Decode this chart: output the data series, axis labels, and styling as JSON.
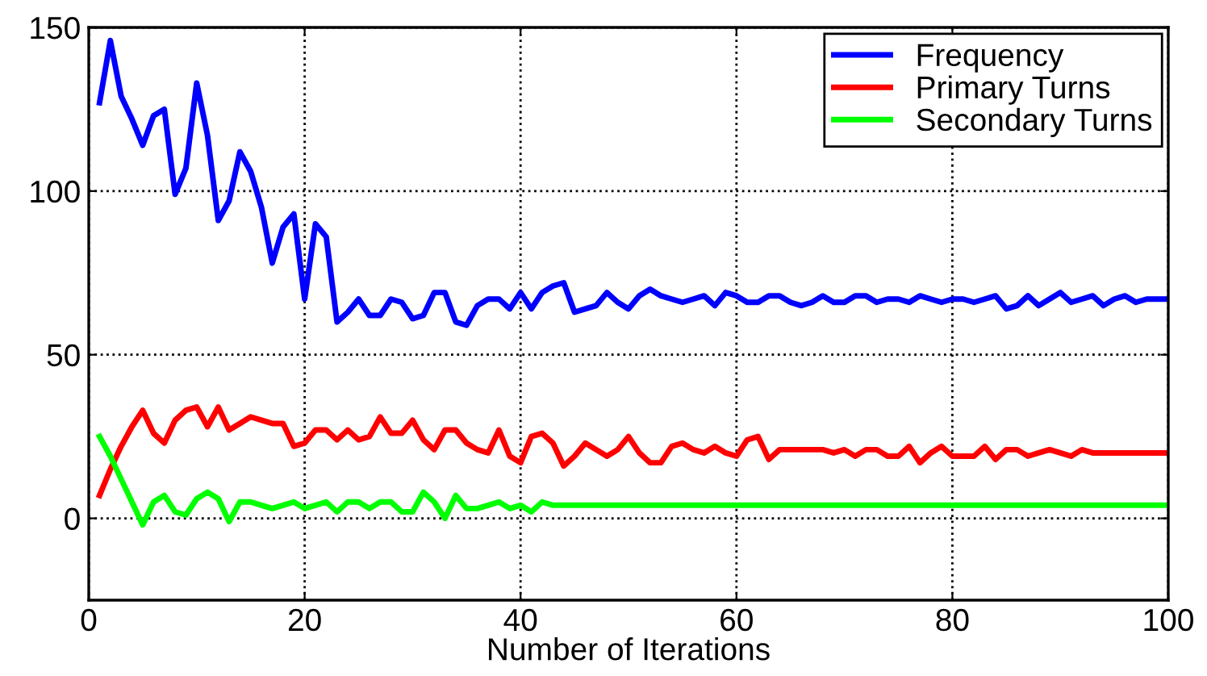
{
  "chart_data": {
    "type": "line",
    "xlabel": "Number of Iterations",
    "xlim": [
      0,
      100
    ],
    "xticks": [
      0,
      20,
      40,
      60,
      80,
      100
    ],
    "ylim": [
      -25,
      150
    ],
    "yticks": [
      0,
      50,
      100,
      150
    ],
    "grid": true,
    "legend": "top right",
    "line_style": "solid",
    "marker": "none",
    "x": [
      1,
      2,
      3,
      4,
      5,
      6,
      7,
      8,
      9,
      10,
      11,
      12,
      13,
      14,
      15,
      16,
      17,
      18,
      19,
      20,
      21,
      22,
      23,
      24,
      25,
      26,
      27,
      28,
      29,
      30,
      31,
      32,
      33,
      34,
      35,
      36,
      37,
      38,
      39,
      40,
      41,
      42,
      43,
      44,
      45,
      46,
      47,
      48,
      49,
      50,
      51,
      52,
      53,
      54,
      55,
      56,
      57,
      58,
      59,
      60,
      61,
      62,
      63,
      64,
      65,
      66,
      67,
      68,
      69,
      70,
      71,
      72,
      73,
      74,
      75,
      76,
      77,
      78,
      79,
      80,
      81,
      82,
      83,
      84,
      85,
      86,
      87,
      88,
      89,
      90,
      91,
      92,
      93,
      94,
      95,
      96,
      97,
      98,
      99,
      100
    ],
    "series": [
      {
        "name": "Frequency",
        "color": "#0000ff",
        "values": [
          127,
          146,
          129,
          122,
          114,
          123,
          125,
          99,
          107,
          133,
          117,
          91,
          97,
          112,
          106,
          95,
          78,
          89,
          93,
          67,
          90,
          86,
          60,
          63,
          67,
          62,
          62,
          67,
          66,
          61,
          62,
          69,
          69,
          60,
          59,
          65,
          67,
          67,
          64,
          69,
          64,
          69,
          71,
          72,
          63,
          64,
          65,
          69,
          66,
          64,
          68,
          70,
          68,
          67,
          66,
          67,
          68,
          65,
          69,
          68,
          66,
          66,
          68,
          68,
          66,
          65,
          66,
          68,
          66,
          66,
          68,
          68,
          66,
          67,
          67,
          66,
          68,
          67,
          66,
          67,
          67,
          66,
          67,
          68,
          64,
          65,
          68,
          65,
          67,
          69,
          66,
          67,
          68,
          65,
          67,
          68,
          66,
          67,
          67,
          67
        ]
      },
      {
        "name": "Primary Turns",
        "color": "#ff0000",
        "values": [
          7,
          15,
          22,
          28,
          33,
          26,
          23,
          30,
          33,
          34,
          28,
          34,
          27,
          29,
          31,
          30,
          29,
          29,
          22,
          23,
          27,
          27,
          24,
          27,
          24,
          25,
          31,
          26,
          26,
          30,
          24,
          21,
          27,
          27,
          23,
          21,
          20,
          27,
          19,
          17,
          25,
          26,
          23,
          16,
          19,
          23,
          21,
          19,
          21,
          25,
          20,
          17,
          17,
          22,
          23,
          21,
          20,
          22,
          20,
          19,
          24,
          25,
          18,
          21,
          21,
          21,
          21,
          21,
          20,
          21,
          19,
          21,
          21,
          19,
          19,
          22,
          17,
          20,
          22,
          19,
          19,
          19,
          22,
          18,
          21,
          21,
          19,
          20,
          21,
          20,
          19,
          21,
          20,
          20,
          20,
          20,
          20,
          20,
          20,
          20
        ]
      },
      {
        "name": "Secondary Turns",
        "color": "#00ff00",
        "values": [
          25,
          19,
          12,
          5,
          -2,
          5,
          7,
          2,
          1,
          6,
          8,
          6,
          -1,
          5,
          5,
          4,
          3,
          4,
          5,
          3,
          4,
          5,
          2,
          5,
          5,
          3,
          5,
          5,
          2,
          2,
          8,
          5,
          0,
          7,
          3,
          3,
          4,
          5,
          3,
          4,
          2,
          5,
          4,
          4,
          4,
          4,
          4,
          4,
          4,
          4,
          4,
          4,
          4,
          4,
          4,
          4,
          4,
          4,
          4,
          4,
          4,
          4,
          4,
          4,
          4,
          4,
          4,
          4,
          4,
          4,
          4,
          4,
          4,
          4,
          4,
          4,
          4,
          4,
          4,
          4,
          4,
          4,
          4,
          4,
          4,
          4,
          4,
          4,
          4,
          4,
          4,
          4,
          4,
          4,
          4,
          4,
          4,
          4,
          4,
          4
        ]
      }
    ]
  }
}
